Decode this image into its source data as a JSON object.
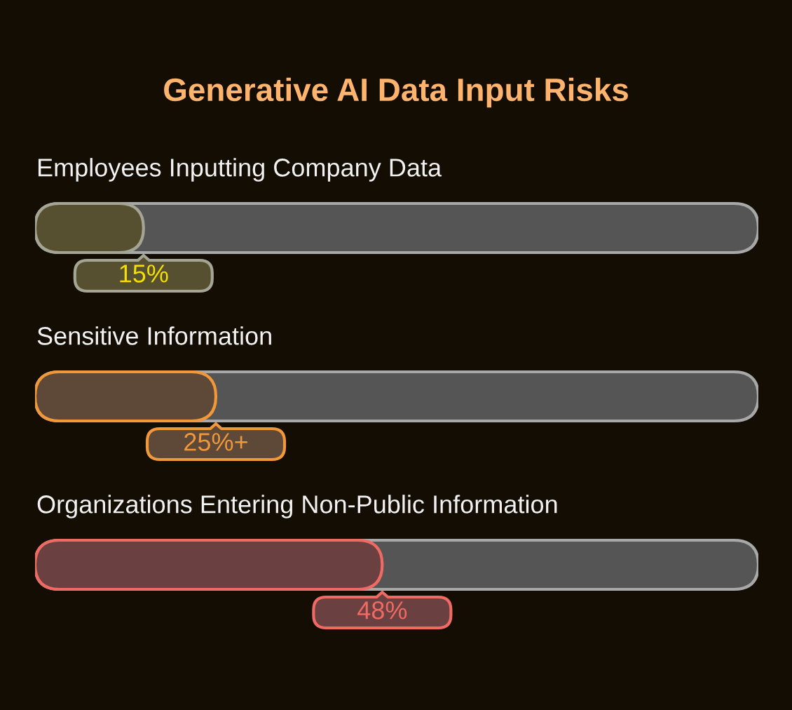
{
  "chart_data": {
    "type": "bar",
    "orientation": "horizontal",
    "title": "Generative AI Data Input Risks",
    "categories": [
      "Employees Inputting Company Data",
      "Sensitive Information",
      "Organizations Entering Non-Public Information"
    ],
    "values": [
      15,
      25,
      48
    ],
    "colors": [
      "#565030",
      "#5e4837",
      "#6a4040"
    ],
    "value_labels": [
      "15%",
      "25%+",
      "48%"
    ],
    "xlim": [
      0,
      100
    ],
    "tick_labels": false
  }
}
